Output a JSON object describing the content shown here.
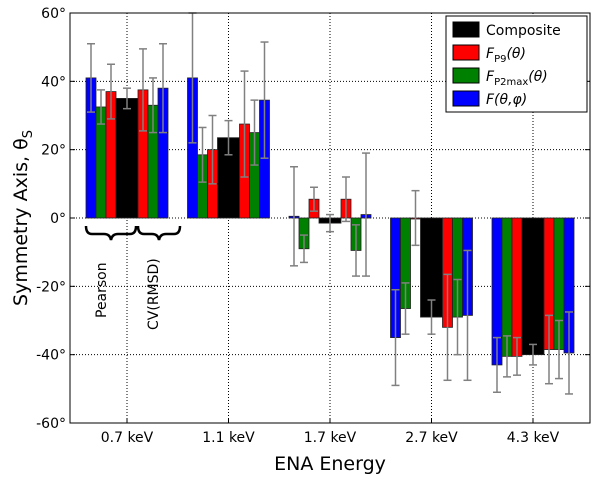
{
  "chart_data": {
    "type": "bar",
    "title": "",
    "xlabel": "ENA Energy",
    "ylabel": "Symmetry Axis, θ",
    "ylabel_sub": "S",
    "categories": [
      "0.7 keV",
      "1.1 keV",
      "1.7 keV",
      "2.7 keV",
      "4.3 keV"
    ],
    "ylim": [
      -60,
      60
    ],
    "yticks": [
      60,
      40,
      20,
      0,
      -20,
      -40,
      -60
    ],
    "ytick_labels": [
      "60°",
      "40°",
      "20°",
      "0°",
      "-20°",
      "-40°",
      "-60°"
    ],
    "grid": true,
    "legend_position": "top-right",
    "bar_order": [
      "F(θ,φ) Pearson",
      "F_P2max(θ) Pearson",
      "F_P9(θ) Pearson",
      "Composite",
      "F_P9(θ) CV(RMSD)",
      "F_P2max(θ) CV(RMSD)",
      "F(θ,φ) CV(RMSD)"
    ],
    "bar_colors": [
      "#0000ff",
      "#008000",
      "#ff0000",
      "#000000",
      "#ff0000",
      "#008000",
      "#0000ff"
    ],
    "values": [
      [
        41,
        32.5,
        37,
        35,
        37.5,
        33,
        38
      ],
      [
        41,
        18.5,
        20,
        23.5,
        27.5,
        25,
        34.5
      ],
      [
        0.5,
        -9,
        5.5,
        -1.5,
        5.5,
        -9.5,
        1
      ],
      [
        -35,
        -26.5,
        0,
        -29,
        -32,
        -29,
        -28.5
      ],
      [
        -43,
        -40.5,
        -40.5,
        -40,
        -38.5,
        -38.5,
        -39.5
      ]
    ],
    "errors": [
      [
        10,
        5,
        8,
        3,
        12,
        8,
        13
      ],
      [
        19,
        8,
        10,
        5,
        15.5,
        9.5,
        17
      ],
      [
        14.5,
        4,
        3.5,
        2.5,
        6.5,
        7.5,
        18
      ],
      [
        14,
        7.5,
        8,
        5,
        15.5,
        11,
        19
      ],
      [
        8,
        6,
        5.5,
        3,
        10,
        8.5,
        12
      ]
    ],
    "legend": [
      {
        "label": "Composite",
        "color": "#000000"
      },
      {
        "label": "F",
        "sub": "P9",
        "suffix": "(θ)",
        "color": "#ff0000"
      },
      {
        "label": "F",
        "sub": "P2max",
        "suffix": "(θ)",
        "color": "#008000"
      },
      {
        "label": "F(θ,φ)",
        "sub": "",
        "suffix": "",
        "color": "#0000ff"
      }
    ],
    "annotations": [
      "Pearson",
      "CV(RMSD)"
    ]
  }
}
